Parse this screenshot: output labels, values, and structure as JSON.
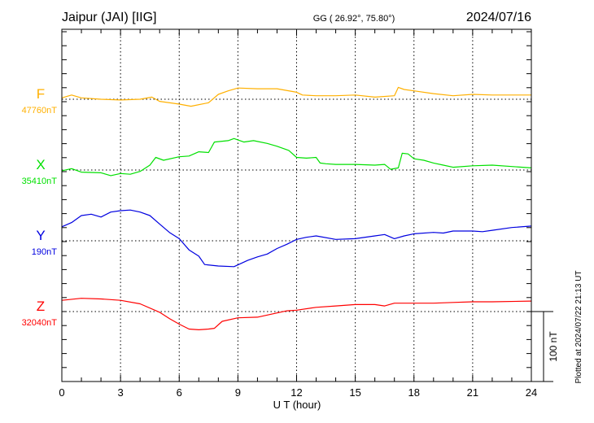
{
  "chart_data": {
    "type": "line",
    "title": "Jaipur (JAI)  [IIG]",
    "coords": "GG ( 26.92°,  75.80°)",
    "date": "2024/07/16",
    "plotted_note": "Plotted at 2024/07/22 21:13 UT",
    "xlabel": "U T (hour)",
    "xlim": [
      0,
      24
    ],
    "xticks": [
      "0",
      "3",
      "6",
      "9",
      "12",
      "15",
      "18",
      "21",
      "24"
    ],
    "scale_bar_label": "100 nT",
    "scale_bar_nT": 100,
    "grid": true,
    "series": [
      {
        "name": "F",
        "baseline_label": "47760nT",
        "color": "#ffb000",
        "x": [
          0,
          0.5,
          1,
          2,
          3,
          4,
          4.6,
          5,
          6,
          6.6,
          7.5,
          8,
          8.5,
          9,
          10,
          11,
          12,
          12.3,
          13,
          14,
          15,
          16,
          17,
          17.2,
          17.5,
          18,
          19,
          20,
          21,
          22,
          24
        ],
        "y": [
          2,
          6,
          2,
          0,
          -1,
          0,
          3,
          -3,
          -7,
          -10,
          -5,
          7,
          12,
          16,
          15,
          15,
          10,
          6,
          5,
          5,
          6,
          3,
          5,
          17,
          14,
          12,
          8,
          5,
          7,
          6,
          6
        ]
      },
      {
        "name": "X",
        "baseline_label": "35410nT",
        "color": "#00e000",
        "x": [
          0,
          0.5,
          1,
          2,
          2.5,
          3,
          3.5,
          4,
          4.5,
          4.8,
          5.2,
          6,
          6.5,
          7,
          7.5,
          7.8,
          8.5,
          8.8,
          9.3,
          9.8,
          10.5,
          11,
          11.6,
          12,
          12.5,
          13,
          13.2,
          13.5,
          14,
          15,
          16,
          16.5,
          16.8,
          17.2,
          17.4,
          17.7,
          18,
          18.5,
          19,
          19.5,
          20,
          21,
          22,
          23,
          24
        ],
        "y": [
          -1,
          2,
          -3,
          -4,
          -8,
          -5,
          -6,
          -2,
          7,
          18,
          14,
          19,
          20,
          26,
          25,
          40,
          42,
          45,
          40,
          42,
          38,
          34,
          28,
          18,
          17,
          18,
          10,
          9,
          8,
          8,
          7,
          8,
          1,
          3,
          24,
          23,
          16,
          14,
          10,
          7,
          4,
          6,
          7,
          5,
          3
        ]
      },
      {
        "name": "Y",
        "baseline_label": "190nT",
        "color": "#0000e0",
        "x": [
          0,
          0.5,
          1,
          1.5,
          2,
          2.5,
          3,
          3.5,
          4,
          4.5,
          5,
          5.5,
          6,
          6.5,
          7,
          7.3,
          8,
          8.8,
          9.5,
          10,
          10.5,
          11,
          11.5,
          12,
          12.5,
          13,
          14,
          15,
          16,
          16.5,
          17,
          17.5,
          18,
          19,
          19.5,
          20,
          21,
          21.5,
          22,
          23,
          24
        ],
        "y": [
          20,
          26,
          36,
          38,
          34,
          41,
          43,
          44,
          41,
          36,
          24,
          12,
          3,
          -13,
          -22,
          -34,
          -36,
          -37,
          -28,
          -23,
          -19,
          -11,
          -5,
          2,
          5,
          7,
          2,
          3,
          7,
          9,
          3,
          7,
          10,
          12,
          11,
          14,
          14,
          13,
          15,
          19,
          21
        ]
      },
      {
        "name": "Z",
        "baseline_label": "32040nT",
        "color": "#ff0000",
        "x": [
          0,
          1,
          2,
          3,
          4,
          5,
          5.5,
          6,
          6.5,
          7,
          7.5,
          7.8,
          8.2,
          9,
          10,
          11,
          11.5,
          12,
          13,
          14,
          15,
          16,
          16.5,
          17,
          18,
          19,
          20,
          21,
          22,
          24
        ],
        "y": [
          16,
          19,
          18,
          16,
          11,
          -1,
          -10,
          -18,
          -25,
          -26,
          -25,
          -24,
          -14,
          -9,
          -8,
          -2,
          1,
          2,
          6,
          8,
          10,
          10,
          8,
          12,
          12,
          12,
          13,
          14,
          14,
          15
        ]
      }
    ]
  }
}
